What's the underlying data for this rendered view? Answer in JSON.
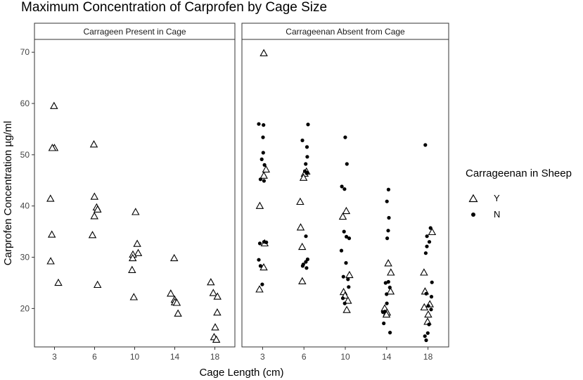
{
  "chart_data": {
    "type": "scatter",
    "title": "Maximum Concentration of Carprofen by Cage Size",
    "xlabel": "Cage Length (cm)",
    "ylabel": "Carprofen Concentration µg/ml",
    "categories": [
      "3",
      "6",
      "10",
      "14",
      "18"
    ],
    "yticks": [
      20,
      30,
      40,
      50,
      60,
      70
    ],
    "ylim": [
      12.5,
      72.5
    ],
    "grid": false,
    "legend": {
      "title": "Carrageenan in Sheep",
      "placement": "right",
      "entries": [
        {
          "label": "Y",
          "marker": "triangle"
        },
        {
          "label": "N",
          "marker": "dot"
        }
      ]
    },
    "panels": [
      {
        "strip": "Carrageen Present in Cage",
        "series": [
          {
            "name": "Y",
            "marker": "triangle",
            "points": [
              {
                "x": "3",
                "y": 59.5
              },
              {
                "x": "3",
                "y": 51.3
              },
              {
                "x": "3",
                "y": 51.3
              },
              {
                "x": "3",
                "y": 41.4
              },
              {
                "x": "3",
                "y": 34.4
              },
              {
                "x": "3",
                "y": 29.2
              },
              {
                "x": "3",
                "y": 25.0
              },
              {
                "x": "6",
                "y": 52.0
              },
              {
                "x": "6",
                "y": 41.8
              },
              {
                "x": "6",
                "y": 39.7
              },
              {
                "x": "6",
                "y": 39.3
              },
              {
                "x": "6",
                "y": 38.0
              },
              {
                "x": "6",
                "y": 34.3
              },
              {
                "x": "6",
                "y": 24.6
              },
              {
                "x": "10",
                "y": 38.8
              },
              {
                "x": "10",
                "y": 32.6
              },
              {
                "x": "10",
                "y": 30.8
              },
              {
                "x": "10",
                "y": 30.5
              },
              {
                "x": "10",
                "y": 29.8
              },
              {
                "x": "10",
                "y": 27.5
              },
              {
                "x": "10",
                "y": 22.2
              },
              {
                "x": "14",
                "y": 29.8
              },
              {
                "x": "14",
                "y": 22.9
              },
              {
                "x": "14",
                "y": 21.7
              },
              {
                "x": "14",
                "y": 21.2
              },
              {
                "x": "14",
                "y": 21.1
              },
              {
                "x": "14",
                "y": 19.0
              },
              {
                "x": "18",
                "y": 25.1
              },
              {
                "x": "18",
                "y": 23.0
              },
              {
                "x": "18",
                "y": 22.3
              },
              {
                "x": "18",
                "y": 19.2
              },
              {
                "x": "18",
                "y": 16.3
              },
              {
                "x": "18",
                "y": 14.4
              },
              {
                "x": "18",
                "y": 13.9
              }
            ]
          },
          {
            "name": "N",
            "marker": "dot",
            "points": []
          }
        ]
      },
      {
        "strip": "Carrageenan Absent from Cage",
        "series": [
          {
            "name": "Y",
            "marker": "triangle",
            "points": [
              {
                "x": "3",
                "y": 69.8
              },
              {
                "x": "3",
                "y": 47.1
              },
              {
                "x": "3",
                "y": 45.9
              },
              {
                "x": "3",
                "y": 40.0
              },
              {
                "x": "3",
                "y": 32.7
              },
              {
                "x": "3",
                "y": 28.0
              },
              {
                "x": "3",
                "y": 23.7
              },
              {
                "x": "6",
                "y": 46.7
              },
              {
                "x": "6",
                "y": 46.3
              },
              {
                "x": "6",
                "y": 45.5
              },
              {
                "x": "6",
                "y": 40.8
              },
              {
                "x": "6",
                "y": 35.8
              },
              {
                "x": "6",
                "y": 32.0
              },
              {
                "x": "6",
                "y": 25.3
              },
              {
                "x": "10",
                "y": 39.0
              },
              {
                "x": "10",
                "y": 37.9
              },
              {
                "x": "10",
                "y": 26.5
              },
              {
                "x": "10",
                "y": 23.2
              },
              {
                "x": "10",
                "y": 22.5
              },
              {
                "x": "10",
                "y": 21.5
              },
              {
                "x": "10",
                "y": 19.7
              },
              {
                "x": "14",
                "y": 28.8
              },
              {
                "x": "14",
                "y": 27.0
              },
              {
                "x": "14",
                "y": 23.3
              },
              {
                "x": "14",
                "y": 20.0
              },
              {
                "x": "14",
                "y": 19.2
              },
              {
                "x": "14",
                "y": 18.8
              },
              {
                "x": "18",
                "y": 34.9
              },
              {
                "x": "18",
                "y": 27.0
              },
              {
                "x": "18",
                "y": 23.3
              },
              {
                "x": "18",
                "y": 20.8
              },
              {
                "x": "18",
                "y": 20.2
              },
              {
                "x": "18",
                "y": 18.8
              },
              {
                "x": "18",
                "y": 17.4
              }
            ]
          },
          {
            "name": "N",
            "marker": "dot",
            "points": [
              {
                "x": "3",
                "y": 56.0
              },
              {
                "x": "3",
                "y": 55.8
              },
              {
                "x": "3",
                "y": 53.4
              },
              {
                "x": "3",
                "y": 50.4
              },
              {
                "x": "3",
                "y": 49.1
              },
              {
                "x": "3",
                "y": 48.0
              },
              {
                "x": "3",
                "y": 45.2
              },
              {
                "x": "3",
                "y": 44.9
              },
              {
                "x": "3",
                "y": 33.0
              },
              {
                "x": "3",
                "y": 32.9
              },
              {
                "x": "3",
                "y": 32.7
              },
              {
                "x": "3",
                "y": 29.5
              },
              {
                "x": "3",
                "y": 28.3
              },
              {
                "x": "3",
                "y": 24.7
              },
              {
                "x": "6",
                "y": 55.9
              },
              {
                "x": "6",
                "y": 52.8
              },
              {
                "x": "6",
                "y": 51.5
              },
              {
                "x": "6",
                "y": 49.6
              },
              {
                "x": "6",
                "y": 48.2
              },
              {
                "x": "6",
                "y": 46.8
              },
              {
                "x": "6",
                "y": 46.5
              },
              {
                "x": "6",
                "y": 46.4
              },
              {
                "x": "6",
                "y": 34.1
              },
              {
                "x": "6",
                "y": 29.6
              },
              {
                "x": "6",
                "y": 29.1
              },
              {
                "x": "6",
                "y": 28.6
              },
              {
                "x": "6",
                "y": 28.3
              },
              {
                "x": "6",
                "y": 27.9
              },
              {
                "x": "10",
                "y": 53.4
              },
              {
                "x": "10",
                "y": 48.2
              },
              {
                "x": "10",
                "y": 43.8
              },
              {
                "x": "10",
                "y": 43.3
              },
              {
                "x": "10",
                "y": 35.0
              },
              {
                "x": "10",
                "y": 34.0
              },
              {
                "x": "10",
                "y": 33.7
              },
              {
                "x": "10",
                "y": 31.3
              },
              {
                "x": "10",
                "y": 28.9
              },
              {
                "x": "10",
                "y": 26.2
              },
              {
                "x": "10",
                "y": 25.7
              },
              {
                "x": "10",
                "y": 24.2
              },
              {
                "x": "10",
                "y": 22.0
              },
              {
                "x": "10",
                "y": 21.0
              },
              {
                "x": "14",
                "y": 43.2
              },
              {
                "x": "14",
                "y": 40.9
              },
              {
                "x": "14",
                "y": 37.7
              },
              {
                "x": "14",
                "y": 35.2
              },
              {
                "x": "14",
                "y": 33.7
              },
              {
                "x": "14",
                "y": 25.2
              },
              {
                "x": "14",
                "y": 25.0
              },
              {
                "x": "14",
                "y": 24.1
              },
              {
                "x": "14",
                "y": 22.8
              },
              {
                "x": "14",
                "y": 21.0
              },
              {
                "x": "14",
                "y": 19.4
              },
              {
                "x": "14",
                "y": 19.3
              },
              {
                "x": "14",
                "y": 17.1
              },
              {
                "x": "14",
                "y": 15.3
              },
              {
                "x": "18",
                "y": 51.9
              },
              {
                "x": "18",
                "y": 35.7
              },
              {
                "x": "18",
                "y": 34.1
              },
              {
                "x": "18",
                "y": 33.0
              },
              {
                "x": "18",
                "y": 32.1
              },
              {
                "x": "18",
                "y": 30.8
              },
              {
                "x": "18",
                "y": 25.1
              },
              {
                "x": "18",
                "y": 22.9
              },
              {
                "x": "18",
                "y": 22.3
              },
              {
                "x": "18",
                "y": 20.5
              },
              {
                "x": "18",
                "y": 19.8
              },
              {
                "x": "18",
                "y": 16.9
              },
              {
                "x": "18",
                "y": 15.2
              },
              {
                "x": "18",
                "y": 14.6
              },
              {
                "x": "18",
                "y": 13.8
              }
            ]
          }
        ]
      }
    ]
  }
}
